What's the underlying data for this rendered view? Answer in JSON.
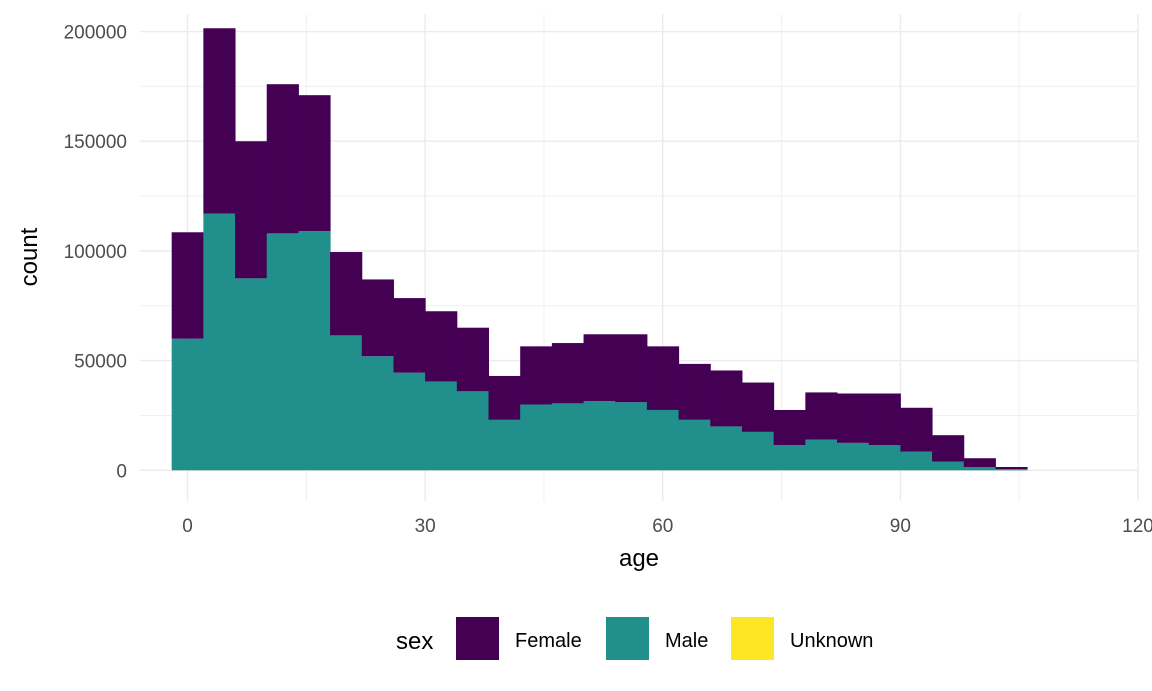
{
  "chart_data": {
    "type": "bar",
    "subtype": "stacked-histogram",
    "xlabel": "age",
    "ylabel": "count",
    "xlim": [
      -6,
      120
    ],
    "ylim": [
      -14000,
      208000
    ],
    "x_ticks": [
      0,
      30,
      60,
      90,
      120
    ],
    "x_tick_labels": [
      "0",
      "30",
      "60",
      "90",
      "120"
    ],
    "y_ticks": [
      0,
      50000,
      100000,
      150000,
      200000
    ],
    "y_tick_labels": [
      "0",
      "50000",
      "100000",
      "150000",
      "200000"
    ],
    "grid": true,
    "bins": [
      {
        "start": -2,
        "end": 2
      },
      {
        "start": 2,
        "end": 6
      },
      {
        "start": 6,
        "end": 10
      },
      {
        "start": 10,
        "end": 14
      },
      {
        "start": 14,
        "end": 18
      },
      {
        "start": 18,
        "end": 22
      },
      {
        "start": 22,
        "end": 26
      },
      {
        "start": 26,
        "end": 30
      },
      {
        "start": 30,
        "end": 34
      },
      {
        "start": 34,
        "end": 38
      },
      {
        "start": 38,
        "end": 42
      },
      {
        "start": 42,
        "end": 46
      },
      {
        "start": 46,
        "end": 50
      },
      {
        "start": 50,
        "end": 54
      },
      {
        "start": 54,
        "end": 58
      },
      {
        "start": 58,
        "end": 62
      },
      {
        "start": 62,
        "end": 66
      },
      {
        "start": 66,
        "end": 70
      },
      {
        "start": 70,
        "end": 74
      },
      {
        "start": 74,
        "end": 78
      },
      {
        "start": 78,
        "end": 82
      },
      {
        "start": 82,
        "end": 86
      },
      {
        "start": 86,
        "end": 90
      },
      {
        "start": 90,
        "end": 94
      },
      {
        "start": 94,
        "end": 98
      },
      {
        "start": 98,
        "end": 102
      },
      {
        "start": 102,
        "end": 106
      }
    ],
    "series": [
      {
        "name": "Male",
        "color": "#21908C",
        "values": [
          60000,
          117000,
          87500,
          108000,
          109000,
          61500,
          52000,
          44500,
          40500,
          36000,
          23000,
          30000,
          30500,
          31500,
          31000,
          27500,
          23000,
          20000,
          17500,
          11500,
          14000,
          12500,
          11500,
          8500,
          4000,
          1500,
          500
        ]
      },
      {
        "name": "Female",
        "color": "#440154",
        "values": [
          48500,
          84500,
          62500,
          68000,
          62000,
          38000,
          35000,
          34000,
          32000,
          29000,
          20000,
          26500,
          27500,
          30500,
          31000,
          29000,
          25500,
          25500,
          22500,
          16000,
          21500,
          22500,
          23500,
          20000,
          12000,
          4000,
          1000
        ]
      },
      {
        "name": "Unknown",
        "color": "#FDE725",
        "values": [
          0,
          0,
          0,
          0,
          0,
          0,
          0,
          0,
          0,
          0,
          0,
          0,
          0,
          0,
          0,
          0,
          0,
          0,
          0,
          0,
          0,
          0,
          0,
          0,
          0,
          0,
          0
        ]
      }
    ],
    "legend": {
      "title": "sex",
      "position": "bottom",
      "entries": [
        {
          "label": "Female",
          "color": "#440154"
        },
        {
          "label": "Male",
          "color": "#21908C"
        },
        {
          "label": "Unknown",
          "color": "#FDE725"
        }
      ]
    }
  }
}
